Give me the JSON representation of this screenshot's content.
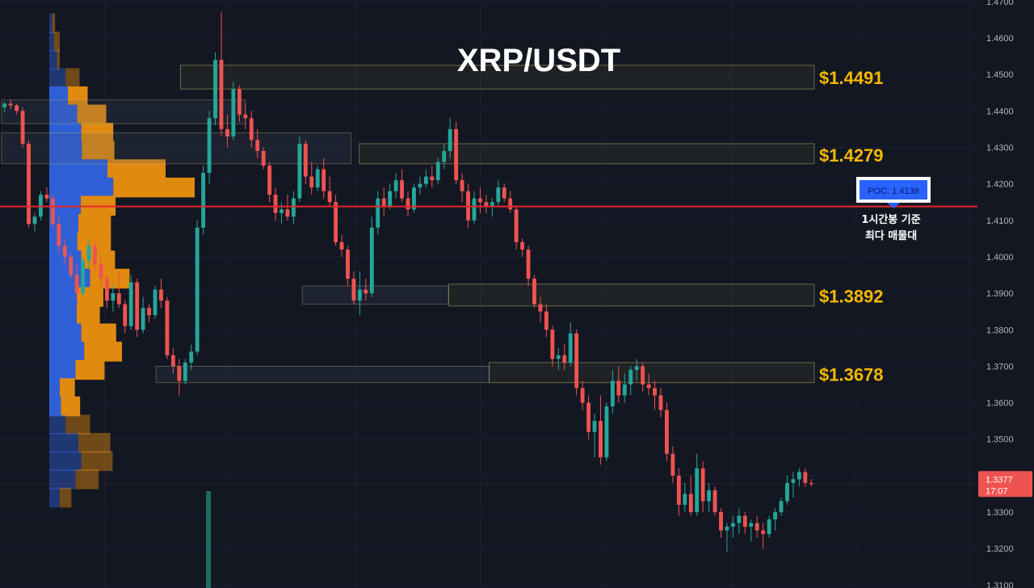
{
  "chart_data": {
    "type": "candlestick",
    "title": "XRP/USDT",
    "y_ticks": [
      "1.4700",
      "1.4600",
      "1.4500",
      "1.4400",
      "1.4300",
      "1.4200",
      "1.4100",
      "1.4000",
      "1.3900",
      "1.3800",
      "1.3700",
      "1.3600",
      "1.3500",
      "1.3400",
      "1.3300",
      "1.3200",
      "1.3100"
    ],
    "y_range": [
      1.3092,
      1.4704
    ],
    "levels": [
      {
        "label": "$1.4491",
        "price": 1.4491,
        "low": 1.446,
        "high": 1.4525,
        "x_start": 0.22
      },
      {
        "label": "$1.4279",
        "price": 1.4279,
        "low": 1.4255,
        "high": 1.431,
        "x_start": 0.44
      },
      {
        "label": "$1.3892",
        "price": 1.3892,
        "low": 1.3865,
        "high": 1.3925,
        "x_start": 0.55
      },
      {
        "label": "$1.3678",
        "price": 1.3678,
        "low": 1.3655,
        "high": 1.371,
        "x_start": 0.6
      }
    ],
    "side_zones": [
      {
        "low": 1.4365,
        "high": 1.443,
        "x_start": 0.0,
        "x_end": 0.3
      },
      {
        "low": 1.4255,
        "high": 1.434,
        "x_start": 0.0,
        "x_end": 0.43
      },
      {
        "low": 1.387,
        "high": 1.392,
        "x_start": 0.37,
        "x_end": 0.55
      },
      {
        "low": 1.3655,
        "high": 1.37,
        "x_start": 0.19,
        "x_end": 0.6
      }
    ],
    "poc": {
      "label": "POC: 1.4138",
      "value": 1.4138
    },
    "poc_note": [
      "1시간봉 기준",
      "최다 매물대"
    ],
    "last_price": {
      "price": "1.3377",
      "countdown": "17:07",
      "value": 1.3377
    },
    "volume_profile": [
      {
        "price": 1.464,
        "buy": 5,
        "sell": 5
      },
      {
        "price": 1.459,
        "buy": 8,
        "sell": 10
      },
      {
        "price": 1.454,
        "buy": 13,
        "sell": 5
      },
      {
        "price": 1.449,
        "buy": 28,
        "sell": 24
      },
      {
        "price": 1.444,
        "buy": 32,
        "sell": 34
      },
      {
        "price": 1.439,
        "buy": 48,
        "sell": 50
      },
      {
        "price": 1.434,
        "buy": 55,
        "sell": 55
      },
      {
        "price": 1.429,
        "buy": 56,
        "sell": 56
      },
      {
        "price": 1.424,
        "buy": 100,
        "sell": 100
      },
      {
        "price": 1.419,
        "buy": 110,
        "sell": 140
      },
      {
        "price": 1.414,
        "buy": 54,
        "sell": 60
      },
      {
        "price": 1.409,
        "buy": 50,
        "sell": 56
      },
      {
        "price": 1.404,
        "buy": 48,
        "sell": 58
      },
      {
        "price": 1.399,
        "buy": 55,
        "sell": 58
      },
      {
        "price": 1.394,
        "buy": 70,
        "sell": 68
      },
      {
        "price": 1.389,
        "buy": 48,
        "sell": 45
      },
      {
        "price": 1.384,
        "buy": 47,
        "sell": 40
      },
      {
        "price": 1.379,
        "buy": 55,
        "sell": 60
      },
      {
        "price": 1.374,
        "buy": 60,
        "sell": 65
      },
      {
        "price": 1.369,
        "buy": 45,
        "sell": 50
      },
      {
        "price": 1.364,
        "buy": 18,
        "sell": 26
      },
      {
        "price": 1.359,
        "buy": 20,
        "sell": 33
      },
      {
        "price": 1.354,
        "buy": 28,
        "sell": 42
      },
      {
        "price": 1.349,
        "buy": 50,
        "sell": 55
      },
      {
        "price": 1.344,
        "buy": 55,
        "sell": 54
      },
      {
        "price": 1.339,
        "buy": 45,
        "sell": 40
      },
      {
        "price": 1.334,
        "buy": 18,
        "sell": 20
      }
    ],
    "candles": [
      [
        1.441,
        1.4425,
        1.4395,
        1.442
      ],
      [
        1.442,
        1.443,
        1.4405,
        1.4415
      ],
      [
        1.4415,
        1.442,
        1.439,
        1.44
      ],
      [
        1.44,
        1.441,
        1.43,
        1.431
      ],
      [
        1.431,
        1.432,
        1.408,
        1.409
      ],
      [
        1.409,
        1.412,
        1.407,
        1.411
      ],
      [
        1.411,
        1.418,
        1.41,
        1.417
      ],
      [
        1.417,
        1.419,
        1.415,
        1.416
      ],
      [
        1.416,
        1.417,
        1.408,
        1.409
      ],
      [
        1.409,
        1.411,
        1.401,
        1.403
      ],
      [
        1.403,
        1.405,
        1.398,
        1.4
      ],
      [
        1.4,
        1.401,
        1.394,
        1.395
      ],
      [
        1.395,
        1.398,
        1.388,
        1.39
      ],
      [
        1.39,
        1.4,
        1.389,
        1.399
      ],
      [
        1.399,
        1.405,
        1.397,
        1.403
      ],
      [
        1.403,
        1.404,
        1.396,
        1.398
      ],
      [
        1.398,
        1.4,
        1.392,
        1.394
      ],
      [
        1.394,
        1.395,
        1.386,
        1.388
      ],
      [
        1.388,
        1.392,
        1.385,
        1.39
      ],
      [
        1.39,
        1.396,
        1.386,
        1.387
      ],
      [
        1.387,
        1.388,
        1.379,
        1.381
      ],
      [
        1.381,
        1.395,
        1.38,
        1.393
      ],
      [
        1.393,
        1.394,
        1.378,
        1.38
      ],
      [
        1.38,
        1.389,
        1.379,
        1.386
      ],
      [
        1.386,
        1.387,
        1.382,
        1.384
      ],
      [
        1.384,
        1.392,
        1.383,
        1.391
      ],
      [
        1.391,
        1.394,
        1.386,
        1.388
      ],
      [
        1.388,
        1.389,
        1.372,
        1.373
      ],
      [
        1.373,
        1.375,
        1.368,
        1.37
      ],
      [
        1.37,
        1.372,
        1.362,
        1.366
      ],
      [
        1.366,
        1.372,
        1.365,
        1.371
      ],
      [
        1.371,
        1.376,
        1.369,
        1.374
      ],
      [
        1.374,
        1.41,
        1.373,
        1.408
      ],
      [
        1.408,
        1.425,
        1.406,
        1.423
      ],
      [
        1.423,
        1.44,
        1.42,
        1.438
      ],
      [
        1.438,
        1.456,
        1.436,
        1.454
      ],
      [
        1.454,
        1.467,
        1.433,
        1.435
      ],
      [
        1.435,
        1.439,
        1.43,
        1.433
      ],
      [
        1.433,
        1.448,
        1.432,
        1.446
      ],
      [
        1.446,
        1.447,
        1.437,
        1.439
      ],
      [
        1.439,
        1.442,
        1.435,
        1.438
      ],
      [
        1.438,
        1.44,
        1.43,
        1.432
      ],
      [
        1.432,
        1.435,
        1.427,
        1.429
      ],
      [
        1.429,
        1.43,
        1.424,
        1.425
      ],
      [
        1.425,
        1.426,
        1.415,
        1.417
      ],
      [
        1.417,
        1.419,
        1.41,
        1.412
      ],
      [
        1.412,
        1.415,
        1.409,
        1.413
      ],
      [
        1.413,
        1.417,
        1.41,
        1.411
      ],
      [
        1.411,
        1.418,
        1.409,
        1.416
      ],
      [
        1.416,
        1.433,
        1.415,
        1.431
      ],
      [
        1.431,
        1.432,
        1.42,
        1.422
      ],
      [
        1.422,
        1.426,
        1.417,
        1.419
      ],
      [
        1.419,
        1.425,
        1.418,
        1.424
      ],
      [
        1.424,
        1.427,
        1.416,
        1.418
      ],
      [
        1.418,
        1.422,
        1.414,
        1.415
      ],
      [
        1.415,
        1.417,
        1.403,
        1.404
      ],
      [
        1.404,
        1.406,
        1.4,
        1.402
      ],
      [
        1.402,
        1.403,
        1.392,
        1.394
      ],
      [
        1.394,
        1.396,
        1.387,
        1.388
      ],
      [
        1.388,
        1.396,
        1.384,
        1.391
      ],
      [
        1.391,
        1.394,
        1.388,
        1.39
      ],
      [
        1.39,
        1.411,
        1.389,
        1.408
      ],
      [
        1.408,
        1.418,
        1.406,
        1.416
      ],
      [
        1.416,
        1.419,
        1.411,
        1.414
      ],
      [
        1.414,
        1.42,
        1.413,
        1.418
      ],
      [
        1.418,
        1.423,
        1.416,
        1.421
      ],
      [
        1.421,
        1.424,
        1.415,
        1.416
      ],
      [
        1.416,
        1.418,
        1.411,
        1.413
      ],
      [
        1.413,
        1.42,
        1.412,
        1.419
      ],
      [
        1.419,
        1.422,
        1.417,
        1.42
      ],
      [
        1.42,
        1.424,
        1.419,
        1.422
      ],
      [
        1.422,
        1.425,
        1.419,
        1.421
      ],
      [
        1.421,
        1.427,
        1.42,
        1.426
      ],
      [
        1.426,
        1.431,
        1.424,
        1.429
      ],
      [
        1.429,
        1.438,
        1.427,
        1.435
      ],
      [
        1.435,
        1.437,
        1.42,
        1.421
      ],
      [
        1.421,
        1.423,
        1.415,
        1.418
      ],
      [
        1.418,
        1.42,
        1.408,
        1.41
      ],
      [
        1.41,
        1.418,
        1.409,
        1.416
      ],
      [
        1.416,
        1.419,
        1.412,
        1.415
      ],
      [
        1.415,
        1.417,
        1.412,
        1.414
      ],
      [
        1.414,
        1.416,
        1.411,
        1.415
      ],
      [
        1.415,
        1.421,
        1.414,
        1.419
      ],
      [
        1.419,
        1.42,
        1.415,
        1.416
      ],
      [
        1.416,
        1.418,
        1.412,
        1.413
      ],
      [
        1.413,
        1.414,
        1.402,
        1.404
      ],
      [
        1.404,
        1.405,
        1.4,
        1.402
      ],
      [
        1.402,
        1.403,
        1.392,
        1.394
      ],
      [
        1.394,
        1.395,
        1.386,
        1.387
      ],
      [
        1.387,
        1.389,
        1.382,
        1.385
      ],
      [
        1.385,
        1.387,
        1.378,
        1.38
      ],
      [
        1.38,
        1.381,
        1.37,
        1.372
      ],
      [
        1.372,
        1.375,
        1.369,
        1.373
      ],
      [
        1.373,
        1.376,
        1.369,
        1.371
      ],
      [
        1.371,
        1.382,
        1.37,
        1.379
      ],
      [
        1.379,
        1.38,
        1.362,
        1.364
      ],
      [
        1.364,
        1.366,
        1.358,
        1.36
      ],
      [
        1.36,
        1.362,
        1.35,
        1.352
      ],
      [
        1.352,
        1.357,
        1.345,
        1.355
      ],
      [
        1.355,
        1.362,
        1.343,
        1.345
      ],
      [
        1.345,
        1.36,
        1.344,
        1.359
      ],
      [
        1.359,
        1.369,
        1.357,
        1.366
      ],
      [
        1.366,
        1.37,
        1.36,
        1.362
      ],
      [
        1.362,
        1.368,
        1.36,
        1.365
      ],
      [
        1.365,
        1.37,
        1.362,
        1.369
      ],
      [
        1.369,
        1.372,
        1.366,
        1.37
      ],
      [
        1.37,
        1.371,
        1.363,
        1.365
      ],
      [
        1.365,
        1.368,
        1.362,
        1.364
      ],
      [
        1.364,
        1.366,
        1.358,
        1.362
      ],
      [
        1.362,
        1.364,
        1.356,
        1.358
      ],
      [
        1.358,
        1.36,
        1.344,
        1.346
      ],
      [
        1.346,
        1.348,
        1.338,
        1.34
      ],
      [
        1.34,
        1.342,
        1.329,
        1.332
      ],
      [
        1.332,
        1.338,
        1.33,
        1.335
      ],
      [
        1.335,
        1.34,
        1.329,
        1.33
      ],
      [
        1.33,
        1.346,
        1.329,
        1.342
      ],
      [
        1.342,
        1.344,
        1.33,
        1.333
      ],
      [
        1.333,
        1.338,
        1.33,
        1.336
      ],
      [
        1.336,
        1.337,
        1.329,
        1.33
      ],
      [
        1.33,
        1.331,
        1.323,
        1.325
      ],
      [
        1.325,
        1.327,
        1.319,
        1.326
      ],
      [
        1.326,
        1.329,
        1.323,
        1.327
      ],
      [
        1.327,
        1.331,
        1.324,
        1.329
      ],
      [
        1.329,
        1.33,
        1.324,
        1.326
      ],
      [
        1.326,
        1.328,
        1.322,
        1.327
      ],
      [
        1.327,
        1.329,
        1.323,
        1.325
      ],
      [
        1.325,
        1.327,
        1.32,
        1.324
      ],
      [
        1.324,
        1.329,
        1.323,
        1.328
      ],
      [
        1.328,
        1.331,
        1.325,
        1.33
      ],
      [
        1.33,
        1.334,
        1.329,
        1.333
      ],
      [
        1.333,
        1.34,
        1.332,
        1.338
      ],
      [
        1.338,
        1.341,
        1.334,
        1.339
      ],
      [
        1.339,
        1.342,
        1.337,
        1.341
      ],
      [
        1.341,
        1.342,
        1.337,
        1.338
      ],
      [
        1.338,
        1.339,
        1.337,
        1.3377
      ]
    ]
  },
  "colors": {
    "background": "#131722",
    "up": "#26a69a",
    "down": "#ef5350",
    "level_label": "#f5b800",
    "poc_line": "#e8262c",
    "poc_box": "#2962ff",
    "profile_buy": "#2f5fd6",
    "profile_sell": "#e08a10"
  }
}
